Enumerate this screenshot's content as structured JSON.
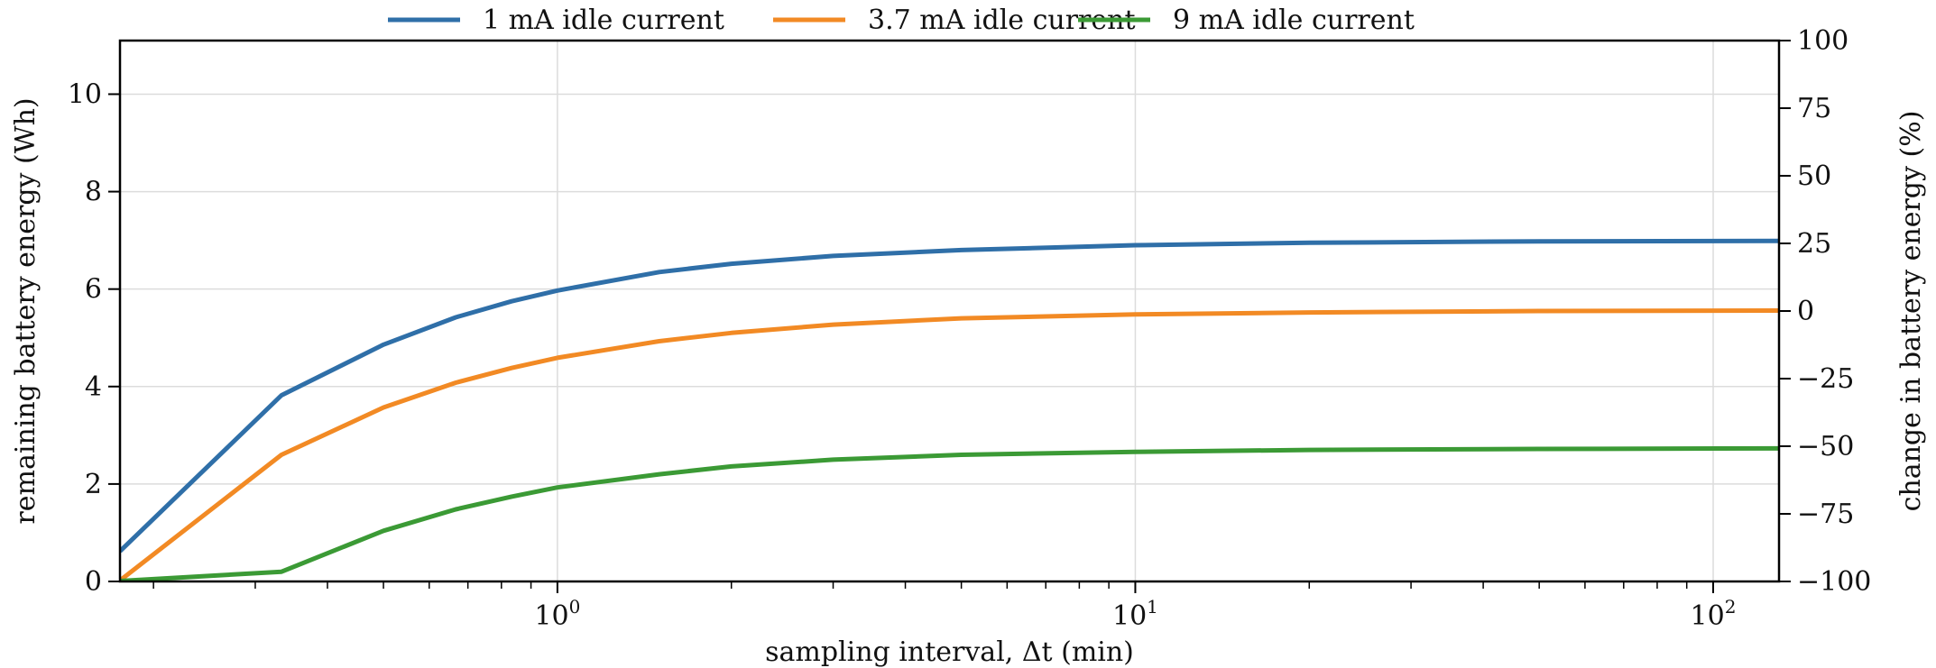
{
  "chart_data": {
    "type": "line",
    "title": "",
    "xlabel": "sampling interval, Δt (min)",
    "ylabel": "remaining battery energy (Wh)",
    "y2label": "change in battery energy (%)",
    "xscale": "log",
    "xlim": [
      0.175,
      130
    ],
    "ylim": [
      0,
      11.1
    ],
    "y2lim": [
      -100,
      100
    ],
    "grid": true,
    "legend_position": "top-center",
    "x_ticks": [
      {
        "base": "10",
        "exp": "0",
        "value": 1
      },
      {
        "base": "10",
        "exp": "1",
        "value": 10
      },
      {
        "base": "10",
        "exp": "2",
        "value": 100
      }
    ],
    "y_ticks": [
      "0",
      "2",
      "4",
      "6",
      "8",
      "10"
    ],
    "y2_ticks": [
      "−100",
      "−75",
      "−50",
      "−25",
      "0",
      "25",
      "50",
      "75",
      "100"
    ],
    "colors": {
      "1 mA": "#2f6fa8",
      "3.7 mA": "#f28a24",
      "9 mA": "#3b9a35"
    },
    "series": [
      {
        "name": "1 mA idle current",
        "color": "#2f6fa8",
        "x": [
          0.175,
          0.333,
          0.5,
          0.667,
          0.833,
          1,
          1.5,
          2,
          3,
          5,
          10,
          20,
          50,
          130
        ],
        "y": [
          0.62,
          3.82,
          4.86,
          5.42,
          5.75,
          5.97,
          6.35,
          6.52,
          6.68,
          6.8,
          6.9,
          6.95,
          6.98,
          6.99
        ]
      },
      {
        "name": "3.7 mA idle current",
        "color": "#f28a24",
        "x": [
          0.175,
          0.333,
          0.5,
          0.667,
          0.833,
          1,
          1.5,
          2,
          3,
          5,
          10,
          20,
          50,
          130
        ],
        "y": [
          0.02,
          2.6,
          3.57,
          4.08,
          4.38,
          4.59,
          4.93,
          5.1,
          5.27,
          5.4,
          5.48,
          5.52,
          5.55,
          5.56
        ]
      },
      {
        "name": "9 mA idle current",
        "color": "#3b9a35",
        "x": [
          0.175,
          0.333,
          0.5,
          0.667,
          0.833,
          1,
          1.5,
          2,
          3,
          5,
          10,
          20,
          50,
          130
        ],
        "y": [
          0.01,
          0.2,
          1.04,
          1.48,
          1.74,
          1.93,
          2.2,
          2.36,
          2.5,
          2.6,
          2.66,
          2.7,
          2.72,
          2.73
        ]
      }
    ]
  }
}
